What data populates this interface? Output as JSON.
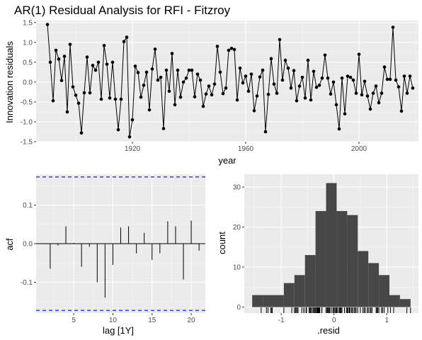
{
  "title": "AR(1) Residual Analysis for RFI - Fitzroy",
  "colors": {
    "bars": "#474747",
    "confidence": "#0000ff",
    "line": "#000000"
  },
  "chart_data": [
    {
      "type": "line",
      "xlabel": "year",
      "ylabel": "Innovation residuals",
      "xlim": [
        1886,
        2021
      ],
      "ylim": [
        -1.5,
        1.55
      ],
      "xticks": [
        1920,
        1960,
        2000
      ],
      "yticks": [
        -1.5,
        -1.0,
        -0.5,
        0.0,
        0.5,
        1.0,
        1.5
      ],
      "ytick_labels": [
        "-1.5",
        "-1.0",
        "-0.5",
        "0.0",
        "0.5",
        "1.0",
        "1.5"
      ],
      "grid": true,
      "x_start": 1890,
      "series": [
        {
          "values": [
            1.45,
            0.5,
            -0.47,
            0.8,
            0.58,
            0.04,
            0.65,
            -0.75,
            0.95,
            -0.12,
            -0.33,
            -0.53,
            -1.28,
            -0.27,
            0.63,
            -0.27,
            0.42,
            0.3,
            0.5,
            -0.43,
            0.92,
            0.45,
            -0.4,
            0.5,
            -0.43,
            -1.2,
            -0.43,
            1.02,
            1.13,
            -1.38,
            -0.95,
            0.4,
            0.24,
            -0.38,
            -0.08,
            0.25,
            -0.7,
            0.33,
            0.83,
            0.05,
            0.12,
            -1.17,
            0.3,
            -0.23,
            0.72,
            -0.57,
            0.3,
            -0.38,
            0.0,
            0.1,
            0.3,
            0.3,
            -0.37,
            0.2,
            0.05,
            -0.61,
            -0.3,
            -0.1,
            -0.32,
            -0.05,
            0.9,
            0.25,
            -0.29,
            -0.15,
            0.8,
            0.85,
            0.82,
            -0.45,
            0.35,
            -0.02,
            0.15,
            -0.23,
            0.2,
            -0.72,
            -0.35,
            0.13,
            0.3,
            -1.25,
            -0.31,
            0.59,
            -0.05,
            -0.28,
            1.07,
            0.05,
            0.55,
            0.35,
            -0.15,
            0.29,
            -0.47,
            -0.1,
            0.12,
            -0.4,
            0.55,
            -0.45,
            0.27,
            -0.13,
            -0.08,
            0.1,
            0.68,
            0.1,
            -0.3,
            0.0,
            -0.57,
            -1.18,
            0.1,
            -0.8,
            0.15,
            0.12,
            0.05,
            -0.28,
            0.7,
            -0.32,
            0.02,
            -0.35,
            -0.68,
            -0.28,
            -0.1,
            -0.52,
            -0.28,
            0.38,
            0.07,
            0.07,
            1.38,
            0.05,
            -0.12,
            -0.73,
            0.15,
            -0.28,
            0.15,
            -0.15
          ]
        }
      ]
    },
    {
      "type": "bar",
      "subtype": "acf",
      "xlabel": "lag [1Y]",
      "ylabel": "acf",
      "lags": [
        1,
        2,
        3,
        4,
        5,
        6,
        7,
        8,
        9,
        10,
        11,
        12,
        13,
        14,
        15,
        16,
        17,
        18,
        19,
        20,
        21
      ],
      "values": [
        0.001,
        -0.065,
        -0.005,
        0.045,
        0.002,
        -0.06,
        -0.008,
        -0.1,
        -0.14,
        -0.055,
        0.042,
        0.045,
        -0.025,
        0.028,
        -0.042,
        -0.025,
        0.058,
        0.045,
        -0.093,
        0.06,
        -0.018
      ],
      "confidence_limits": [
        0.173,
        -0.173
      ],
      "xlim": [
        0.2,
        21.8
      ],
      "ylim": [
        -0.18,
        0.18
      ],
      "xticks": [
        5,
        10,
        15,
        20
      ],
      "yticks": [
        0.1,
        0.0,
        -0.1
      ],
      "ytick_labels": [
        "0.1",
        "0.0",
        "-0.1"
      ],
      "grid": true
    },
    {
      "type": "bar",
      "subtype": "histogram",
      "xlabel": ".resid",
      "ylabel": "count",
      "bin_width": 0.2,
      "bin_starts": [
        -1.55,
        -1.35,
        -1.15,
        -0.95,
        -0.75,
        -0.55,
        -0.35,
        -0.15,
        0.05,
        0.25,
        0.45,
        0.65,
        0.85,
        1.05,
        1.25
      ],
      "values": [
        3,
        3,
        3,
        6,
        8,
        13,
        24,
        31,
        24,
        23,
        14,
        11,
        8,
        3,
        2
      ],
      "xlim": [
        -1.7,
        1.6
      ],
      "ylim": [
        -1.5,
        33.2
      ],
      "xticks": [
        -1,
        0,
        1
      ],
      "yticks": [
        0,
        10,
        20,
        30
      ],
      "grid": true,
      "rug": [
        -1.38,
        -1.28,
        -1.25,
        -1.2,
        -1.18,
        -1.17,
        -0.95,
        -0.8,
        -0.75,
        -0.73,
        -0.72,
        -0.7,
        -0.68,
        -0.61,
        -0.57,
        -0.57,
        -0.53,
        -0.52,
        -0.47,
        -0.47,
        -0.45,
        -0.45,
        -0.43,
        -0.43,
        -0.4,
        -0.4,
        -0.38,
        -0.38,
        -0.37,
        -0.35,
        -0.35,
        -0.33,
        -0.32,
        -0.32,
        -0.31,
        -0.3,
        -0.3,
        -0.29,
        -0.28,
        -0.28,
        -0.28,
        -0.27,
        -0.27,
        -0.23,
        -0.23,
        -0.15,
        -0.15,
        -0.13,
        -0.12,
        -0.12,
        -0.1,
        -0.1,
        -0.08,
        -0.08,
        -0.05,
        -0.05,
        -0.02,
        0.0,
        0.0,
        0.02,
        0.04,
        0.05,
        0.05,
        0.05,
        0.07,
        0.07,
        0.1,
        0.1,
        0.1,
        0.12,
        0.12,
        0.13,
        0.15,
        0.15,
        0.15,
        0.2,
        0.2,
        0.24,
        0.25,
        0.25,
        0.27,
        0.29,
        0.3,
        0.3,
        0.3,
        0.3,
        0.33,
        0.35,
        0.35,
        0.38,
        0.4,
        0.42,
        0.45,
        0.5,
        0.5,
        0.55,
        0.55,
        0.58,
        0.59,
        0.63,
        0.65,
        0.68,
        0.7,
        0.72,
        0.8,
        0.8,
        0.82,
        0.83,
        0.85,
        0.9,
        0.92,
        0.95,
        1.02,
        1.07,
        1.13,
        1.38,
        1.45
      ]
    }
  ]
}
